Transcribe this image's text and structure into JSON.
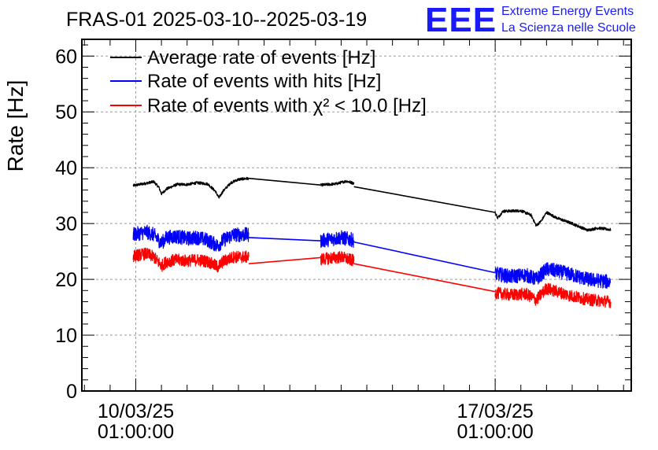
{
  "logo": {
    "mark": "EEE",
    "line1": "Extreme Energy Events",
    "line2": "La Scienza nelle Scuole",
    "color": "#1a1aff"
  },
  "chart_data": {
    "type": "line",
    "title": "FRAS-01 2025-03-10--2025-03-19",
    "ylabel": "Rate [Hz]",
    "xlabel": "",
    "ylim": [
      0,
      63
    ],
    "yticks": [
      0,
      10,
      20,
      30,
      40,
      50,
      60
    ],
    "grid": true,
    "legend_position": "top-left",
    "xticks": [
      {
        "day": 0,
        "line1": "10/03/25",
        "line2": "01:00:00"
      },
      {
        "day": 7,
        "line1": "17/03/25",
        "line2": "01:00:00"
      }
    ],
    "xrange_days": [
      -1.05,
      9.65
    ],
    "series": [
      {
        "name": "Average rate of events [Hz]",
        "color": "#000000",
        "noise": 0.25,
        "segments": [
          [
            [
              -0.05,
              36.8
            ],
            [
              0.2,
              37.2
            ],
            [
              0.35,
              37.5
            ],
            [
              0.45,
              36.5
            ],
            [
              0.5,
              35.3
            ],
            [
              0.6,
              36.2
            ],
            [
              0.8,
              37.0
            ],
            [
              1.0,
              37.0
            ],
            [
              1.2,
              37.3
            ],
            [
              1.4,
              37.1
            ],
            [
              1.55,
              35.8
            ],
            [
              1.62,
              34.6
            ],
            [
              1.7,
              35.8
            ],
            [
              1.85,
              37.3
            ],
            [
              2.0,
              37.9
            ],
            [
              2.2,
              38.1
            ]
          ],
          [
            [
              2.2,
              38.1
            ],
            [
              3.6,
              36.9
            ]
          ],
          [
            [
              3.6,
              36.9
            ],
            [
              3.9,
              37.1
            ],
            [
              4.1,
              37.6
            ],
            [
              4.25,
              37.2
            ]
          ],
          [
            [
              4.25,
              36.6
            ],
            [
              7.0,
              32.0
            ]
          ],
          [
            [
              7.0,
              32.0
            ],
            [
              7.05,
              31.0
            ],
            [
              7.15,
              32.2
            ],
            [
              7.5,
              32.3
            ],
            [
              7.7,
              31.5
            ],
            [
              7.8,
              29.6
            ],
            [
              7.9,
              30.5
            ],
            [
              8.0,
              32.0
            ],
            [
              8.2,
              31.0
            ],
            [
              8.5,
              30.0
            ],
            [
              8.8,
              28.8
            ],
            [
              9.0,
              29.2
            ],
            [
              9.25,
              28.9
            ]
          ]
        ]
      },
      {
        "name": "Rate of events with hits [Hz]",
        "color": "#0000ff",
        "noise": 1.3,
        "segments": [
          [
            [
              -0.05,
              28.0
            ],
            [
              0.2,
              28.5
            ],
            [
              0.35,
              28.0
            ],
            [
              0.45,
              27.0
            ],
            [
              0.5,
              26.5
            ],
            [
              0.6,
              27.5
            ],
            [
              0.8,
              27.7
            ],
            [
              1.0,
              27.3
            ],
            [
              1.2,
              27.5
            ],
            [
              1.4,
              27.0
            ],
            [
              1.6,
              26.0
            ],
            [
              1.7,
              27.0
            ],
            [
              1.9,
              28.0
            ],
            [
              2.2,
              28.0
            ]
          ],
          [
            [
              2.2,
              27.5
            ],
            [
              3.6,
              26.9
            ]
          ],
          [
            [
              3.6,
              26.9
            ],
            [
              3.8,
              27.2
            ],
            [
              4.0,
              27.5
            ],
            [
              4.25,
              27.0
            ]
          ],
          [
            [
              4.25,
              26.7
            ],
            [
              7.0,
              21.2
            ]
          ],
          [
            [
              7.0,
              21.0
            ],
            [
              7.3,
              20.5
            ],
            [
              7.6,
              20.8
            ],
            [
              7.8,
              20.0
            ],
            [
              8.0,
              21.8
            ],
            [
              8.2,
              21.5
            ],
            [
              8.5,
              20.8
            ],
            [
              8.8,
              20.0
            ],
            [
              9.0,
              19.8
            ],
            [
              9.25,
              19.5
            ]
          ]
        ]
      },
      {
        "name": "Rate of events with χ² < 10.0 [Hz]",
        "color": "#ff0000",
        "noise": 1.1,
        "segments": [
          [
            [
              -0.05,
              24.2
            ],
            [
              0.2,
              24.6
            ],
            [
              0.35,
              24.0
            ],
            [
              0.45,
              23.0
            ],
            [
              0.5,
              22.4
            ],
            [
              0.6,
              23.2
            ],
            [
              0.8,
              23.5
            ],
            [
              1.0,
              23.3
            ],
            [
              1.2,
              23.5
            ],
            [
              1.4,
              23.2
            ],
            [
              1.6,
              22.2
            ],
            [
              1.7,
              23.2
            ],
            [
              1.9,
              24.0
            ],
            [
              2.2,
              24.0
            ]
          ],
          [
            [
              2.2,
              22.8
            ],
            [
              3.6,
              23.9
            ]
          ],
          [
            [
              3.6,
              23.6
            ],
            [
              3.8,
              23.8
            ],
            [
              4.0,
              24.0
            ],
            [
              4.25,
              23.3
            ]
          ],
          [
            [
              4.25,
              22.8
            ],
            [
              7.0,
              17.8
            ]
          ],
          [
            [
              7.0,
              17.6
            ],
            [
              7.3,
              17.2
            ],
            [
              7.6,
              17.4
            ],
            [
              7.8,
              16.3
            ],
            [
              8.0,
              18.4
            ],
            [
              8.2,
              17.8
            ],
            [
              8.5,
              17.0
            ],
            [
              8.8,
              16.4
            ],
            [
              9.0,
              16.2
            ],
            [
              9.25,
              16.0
            ]
          ]
        ]
      }
    ]
  }
}
